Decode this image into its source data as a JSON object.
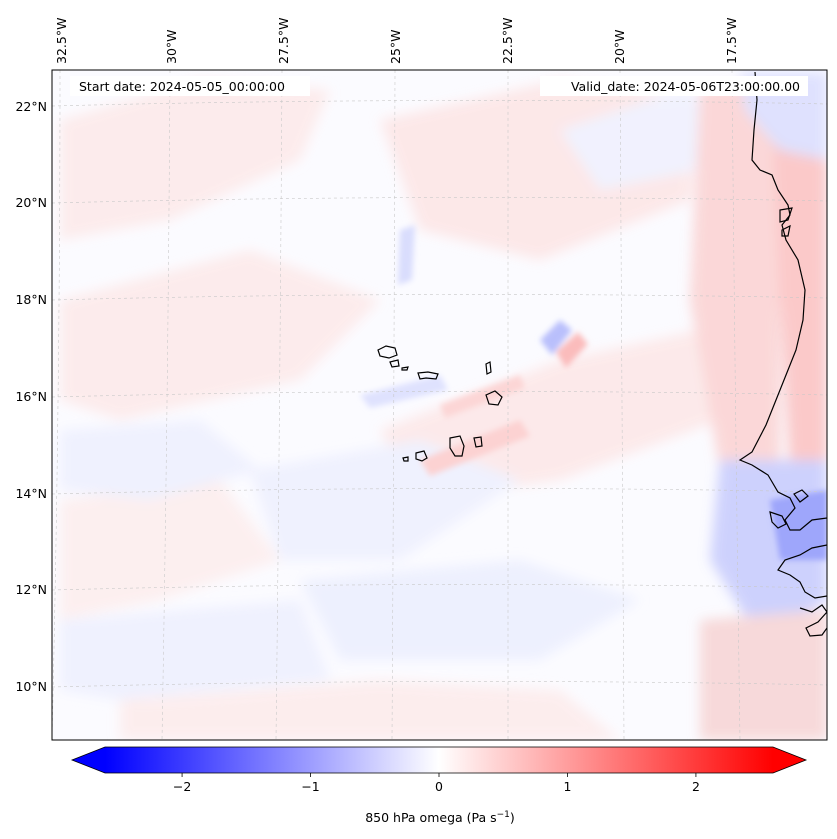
{
  "map": {
    "start_date_label": "Start date: 2024-05-05_00:00:00",
    "valid_date_label": "Valid_date: 2024-05-06T23:00:00.00",
    "lon_labels": [
      "32.5°W",
      "30°W",
      "27.5°W",
      "25°W",
      "22.5°W",
      "20°W",
      "17.5°W"
    ],
    "lat_labels": [
      "22°N",
      "20°N",
      "18°N",
      "16°N",
      "14°N",
      "12°N",
      "10°N"
    ],
    "extent": {
      "lon_min": -32.6,
      "lon_max": -15.8,
      "lat_min": 8.9,
      "lat_max": 22.8
    },
    "projection": "lambert-conformal",
    "gridlines": "dashed light grey",
    "coastline_color": "#000000",
    "features": [
      "Cabo Verde islands",
      "West African coastline (Senegal, Mauritania, Gambia, Guinea-Bissau)"
    ]
  },
  "colorbar": {
    "ticks": [
      "−2",
      "−1",
      "0",
      "1",
      "2"
    ],
    "tick_values": [
      -2,
      -1,
      0,
      1,
      2
    ],
    "range": [
      -2.6,
      2.6
    ],
    "label_main": "850 hPa omega (Pa s",
    "label_sup": "−1",
    "label_end": ")",
    "colormap": "bwr",
    "extend": "both",
    "low_color": "#0000ff",
    "mid_color": "#ffffff",
    "high_color": "#ff0000"
  }
}
